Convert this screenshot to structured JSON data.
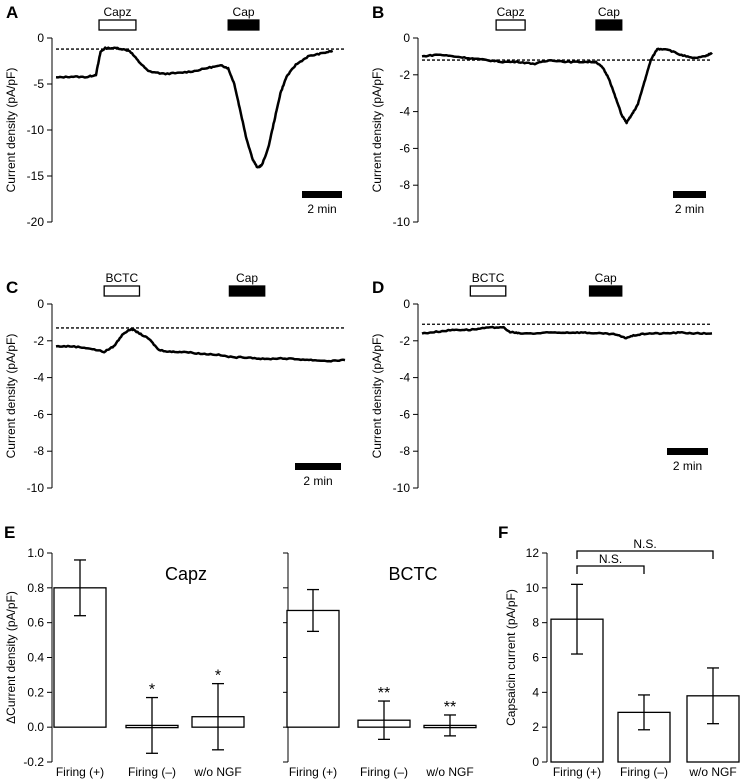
{
  "chart_data": [
    {
      "panel": "A",
      "type": "line",
      "ylabel": "Current density (pA/pF)",
      "ylim": [
        -20,
        0
      ],
      "yticks": [
        0,
        -5,
        -10,
        -15,
        -20
      ],
      "ytick_labels": [
        "0",
        "-5",
        "-10",
        "-15",
        "-20"
      ],
      "baseline": -1.2,
      "scalebar_label": "2 min",
      "stimuli": [
        {
          "label": "Capz",
          "fill": "open",
          "start": 1.4,
          "end": 2.6
        },
        {
          "label": "Cap",
          "fill": "filled",
          "start": 5.6,
          "end": 6.6
        }
      ],
      "trace": [
        [
          0,
          -4.3
        ],
        [
          0.5,
          -4.2
        ],
        [
          1.0,
          -4.25
        ],
        [
          1.3,
          -4.0
        ],
        [
          1.45,
          -1.5
        ],
        [
          1.6,
          -1.1
        ],
        [
          2.0,
          -1.1
        ],
        [
          2.4,
          -1.4
        ],
        [
          2.7,
          -2.6
        ],
        [
          3.0,
          -3.6
        ],
        [
          3.5,
          -3.9
        ],
        [
          4.0,
          -3.8
        ],
        [
          4.5,
          -3.6
        ],
        [
          5.0,
          -3.2
        ],
        [
          5.4,
          -3.0
        ],
        [
          5.6,
          -3.3
        ],
        [
          5.8,
          -5.0
        ],
        [
          6.0,
          -8.0
        ],
        [
          6.2,
          -11.0
        ],
        [
          6.4,
          -13.2
        ],
        [
          6.55,
          -14.1
        ],
        [
          6.7,
          -13.8
        ],
        [
          6.9,
          -12.0
        ],
        [
          7.1,
          -9.0
        ],
        [
          7.3,
          -6.0
        ],
        [
          7.5,
          -4.2
        ],
        [
          7.8,
          -2.9
        ],
        [
          8.2,
          -2.0
        ],
        [
          8.6,
          -1.7
        ],
        [
          9.0,
          -1.4
        ]
      ]
    },
    {
      "panel": "B",
      "type": "line",
      "ylabel": "Current density (pA/pF)",
      "ylim": [
        -10,
        0
      ],
      "yticks": [
        0,
        -2,
        -4,
        -6,
        -8,
        -10
      ],
      "ytick_labels": [
        "0",
        "-2",
        "-4",
        "-6",
        "-8",
        "-10"
      ],
      "baseline": -1.2,
      "scalebar_label": "2 min",
      "stimuli": [
        {
          "label": "Capz",
          "fill": "open",
          "start": 2.3,
          "end": 3.2
        },
        {
          "label": "Cap",
          "fill": "filled",
          "start": 5.4,
          "end": 6.2
        }
      ],
      "trace": [
        [
          0,
          -1.0
        ],
        [
          0.5,
          -0.9
        ],
        [
          1.0,
          -1.0
        ],
        [
          1.5,
          -1.1
        ],
        [
          2.0,
          -1.2
        ],
        [
          2.5,
          -1.3
        ],
        [
          3.0,
          -1.3
        ],
        [
          3.5,
          -1.4
        ],
        [
          4.0,
          -1.2
        ],
        [
          4.5,
          -1.3
        ],
        [
          5.0,
          -1.3
        ],
        [
          5.4,
          -1.3
        ],
        [
          5.6,
          -1.6
        ],
        [
          5.8,
          -2.2
        ],
        [
          6.0,
          -3.2
        ],
        [
          6.2,
          -4.2
        ],
        [
          6.35,
          -4.6
        ],
        [
          6.5,
          -4.2
        ],
        [
          6.7,
          -3.6
        ],
        [
          6.9,
          -2.4
        ],
        [
          7.1,
          -1.2
        ],
        [
          7.3,
          -0.6
        ],
        [
          7.6,
          -0.6
        ],
        [
          8.0,
          -0.9
        ],
        [
          8.4,
          -1.1
        ],
        [
          8.8,
          -1.0
        ],
        [
          9.0,
          -0.8
        ]
      ]
    },
    {
      "panel": "C",
      "type": "line",
      "ylabel": "Current density (pA/pF)",
      "ylim": [
        -10,
        0
      ],
      "yticks": [
        0,
        -2,
        -4,
        -6,
        -8,
        -10
      ],
      "ytick_labels": [
        "0",
        "-2",
        "-4",
        "-6",
        "-8",
        "-10"
      ],
      "baseline": -1.3,
      "scalebar_label": "2 min",
      "stimuli": [
        {
          "label": "BCTC",
          "fill": "open",
          "start": 1.5,
          "end": 2.6
        },
        {
          "label": "Cap",
          "fill": "filled",
          "start": 5.4,
          "end": 6.5
        }
      ],
      "trace": [
        [
          0,
          -2.3
        ],
        [
          0.5,
          -2.3
        ],
        [
          1.0,
          -2.4
        ],
        [
          1.5,
          -2.6
        ],
        [
          1.8,
          -2.3
        ],
        [
          2.1,
          -1.6
        ],
        [
          2.35,
          -1.35
        ],
        [
          2.6,
          -1.6
        ],
        [
          2.9,
          -1.9
        ],
        [
          3.2,
          -2.5
        ],
        [
          3.6,
          -2.6
        ],
        [
          4.0,
          -2.6
        ],
        [
          4.5,
          -2.7
        ],
        [
          5.0,
          -2.75
        ],
        [
          5.5,
          -2.9
        ],
        [
          6.0,
          -2.9
        ],
        [
          6.5,
          -3.0
        ],
        [
          7.0,
          -2.95
        ],
        [
          7.5,
          -3.0
        ],
        [
          8.0,
          -3.05
        ],
        [
          8.5,
          -3.1
        ],
        [
          9.0,
          -3.05
        ]
      ]
    },
    {
      "panel": "D",
      "type": "line",
      "ylabel": "Current density (pA/pF)",
      "ylim": [
        -10,
        0
      ],
      "yticks": [
        0,
        -2,
        -4,
        -6,
        -8,
        -10
      ],
      "ytick_labels": [
        "0",
        "-2",
        "-4",
        "-6",
        "-8",
        "-10"
      ],
      "baseline": -1.1,
      "scalebar_label": "2 min",
      "stimuli": [
        {
          "label": "BCTC",
          "fill": "open",
          "start": 1.5,
          "end": 2.6
        },
        {
          "label": "Cap",
          "fill": "filled",
          "start": 5.2,
          "end": 6.2
        }
      ],
      "trace": [
        [
          0,
          -1.6
        ],
        [
          0.5,
          -1.5
        ],
        [
          1.0,
          -1.4
        ],
        [
          1.5,
          -1.4
        ],
        [
          2.0,
          -1.3
        ],
        [
          2.5,
          -1.25
        ],
        [
          2.7,
          -1.5
        ],
        [
          3.0,
          -1.6
        ],
        [
          3.5,
          -1.6
        ],
        [
          4.0,
          -1.55
        ],
        [
          4.5,
          -1.55
        ],
        [
          5.0,
          -1.55
        ],
        [
          5.5,
          -1.6
        ],
        [
          6.0,
          -1.65
        ],
        [
          6.3,
          -1.85
        ],
        [
          6.6,
          -1.7
        ],
        [
          7.0,
          -1.6
        ],
        [
          7.5,
          -1.6
        ],
        [
          8.0,
          -1.55
        ],
        [
          8.5,
          -1.6
        ],
        [
          9.0,
          -1.6
        ]
      ]
    },
    {
      "panel": "E",
      "type": "bar",
      "ylabel": "ΔCurrent density (pA/pF)",
      "ylim": [
        -0.2,
        1.0
      ],
      "yticks": [
        1.0,
        0.8,
        0.6,
        0.4,
        0.2,
        0.0,
        -0.2
      ],
      "ytick_labels": [
        "1.0",
        "0.8",
        "0.6",
        "0.4",
        "0.2",
        "0.0",
        "-0.2"
      ],
      "groups": [
        {
          "title": "Capz",
          "categories": [
            "Firing (+)",
            "Firing (–)",
            "w/o NGF"
          ],
          "values": [
            0.8,
            0.01,
            0.06
          ],
          "errors": [
            0.16,
            0.16,
            0.19
          ],
          "significance": [
            "",
            "*",
            "*"
          ]
        },
        {
          "title": "BCTC",
          "categories": [
            "Firing (+)",
            "Firing (–)",
            "w/o NGF"
          ],
          "values": [
            0.67,
            0.04,
            0.01
          ],
          "errors": [
            0.12,
            0.11,
            0.06
          ],
          "significance": [
            "",
            "**",
            "**"
          ]
        }
      ]
    },
    {
      "panel": "F",
      "type": "bar",
      "ylabel": "Capsaicin current (pA/pF)",
      "ylim": [
        0,
        12
      ],
      "yticks": [
        0,
        2,
        4,
        6,
        8,
        10,
        12
      ],
      "ytick_labels": [
        "0",
        "2",
        "4",
        "6",
        "8",
        "10",
        "12"
      ],
      "categories": [
        "Firing (+)",
        "Firing (–)",
        "w/o NGF"
      ],
      "values": [
        8.2,
        2.85,
        3.8
      ],
      "errors": [
        2.0,
        1.0,
        1.6
      ],
      "comparisons": [
        {
          "from": 0,
          "to": 1,
          "label": "N.S."
        },
        {
          "from": 0,
          "to": 2,
          "label": "N.S."
        }
      ]
    }
  ]
}
